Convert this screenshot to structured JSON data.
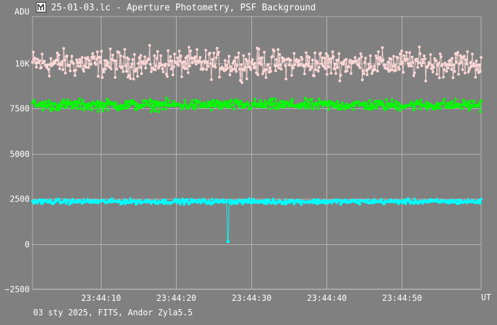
{
  "window": {
    "title": "25-01-03.lc - Aperture Photometry, PSF Background"
  },
  "footer": {
    "text": "03 sty 2025, FITS, Andor Zyla5.5"
  },
  "chart_data": {
    "type": "line",
    "xlabel": "UT",
    "ylabel": "ADU",
    "xlim": [
      "23:44:00.9",
      "23:45:00.5"
    ],
    "ylim": [
      -2500,
      12600
    ],
    "x_ticks": [
      "23:44:10",
      "23:44:20",
      "23:44:30",
      "23:44:40",
      "23:44:50"
    ],
    "y_ticks": [
      -2500,
      0,
      2500,
      5000,
      7500,
      10000
    ],
    "y_tick_labels": [
      "−2500",
      "0",
      "2500",
      "5000",
      "7500",
      "10K"
    ],
    "grid": true,
    "time_start": "23:44:00.9",
    "time_end": "23:45:00.5",
    "series": [
      {
        "color": "#ffd7d7",
        "mean": 10000,
        "noise": 650,
        "points": 560,
        "markers": true
      },
      {
        "color": "#00ff00",
        "mean": 7700,
        "noise": 260,
        "points": 560,
        "markers": true
      },
      {
        "color": "#00ffff",
        "mean": 2350,
        "noise": 110,
        "points": 560,
        "markers": true,
        "dip": {
          "start": "23:44:26.8",
          "end": "23:44:27.0",
          "value": 150
        }
      }
    ]
  }
}
